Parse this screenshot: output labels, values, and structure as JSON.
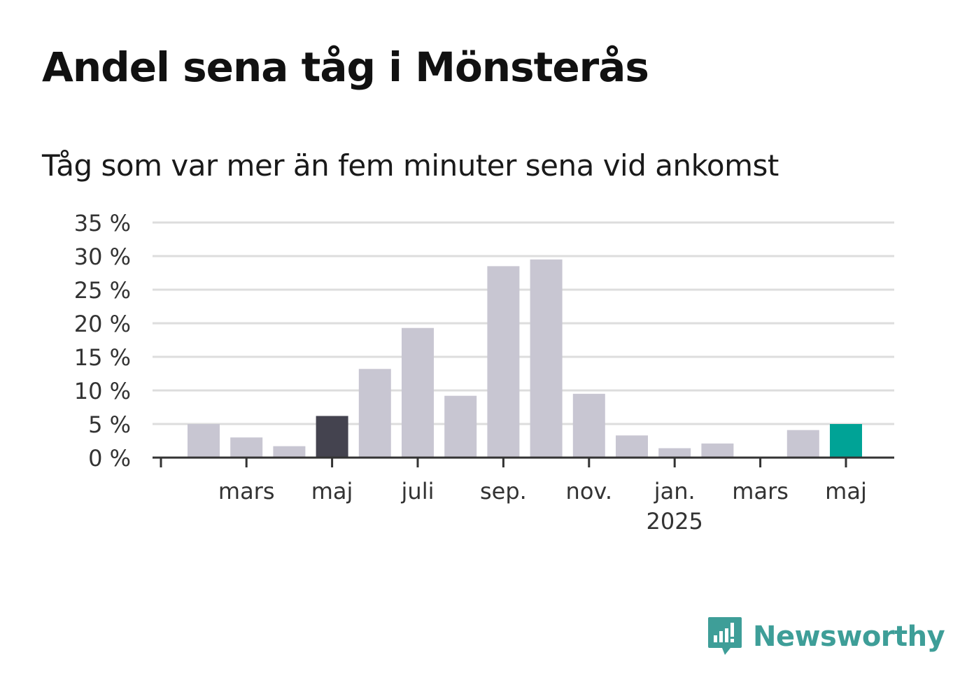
{
  "title": "Andel sena tåg i Mönsterås",
  "subtitle": "Tåg som var mer än fem minuter sena vid ankomst",
  "logo": {
    "text": "Newsworthy",
    "icon": "newsworthy-chart-bubble-icon",
    "color": "#3e9e98"
  },
  "colors": {
    "default_bar": "#c8c6d2",
    "highlight_bar": "#44434f",
    "latest_bar": "#00a396",
    "grid": "#dddddd",
    "axis": "#333333"
  },
  "chart_data": {
    "type": "bar",
    "title": "Andel sena tåg i Mönsterås",
    "subtitle": "Tåg som var mer än fem minuter sena vid ankomst",
    "ylim": [
      0,
      35
    ],
    "yticks": [
      0,
      5,
      10,
      15,
      20,
      25,
      30,
      35
    ],
    "ytick_labels": [
      "0 %",
      "5 %",
      "10 %",
      "15 %",
      "20 %",
      "25 %",
      "30 %",
      "35 %"
    ],
    "grid": true,
    "categories": [
      "2024-02",
      "2024-03",
      "2024-04",
      "2024-05",
      "2024-06",
      "2024-07",
      "2024-08",
      "2024-09",
      "2024-10",
      "2024-11",
      "2024-12",
      "2025-01",
      "2025-02",
      "2025-03",
      "2025-04",
      "2025-05"
    ],
    "values": [
      5.0,
      3.0,
      1.7,
      6.2,
      13.2,
      19.3,
      9.2,
      28.5,
      29.5,
      9.5,
      3.3,
      1.4,
      2.1,
      0,
      4.1,
      5.0
    ],
    "highlight": {
      "2024-05": "highlight_bar",
      "2025-05": "latest_bar"
    },
    "x_tick_labels": [
      {
        "category": "2024-03",
        "label": "mars"
      },
      {
        "category": "2024-05",
        "label": "maj"
      },
      {
        "category": "2024-07",
        "label": "juli"
      },
      {
        "category": "2024-09",
        "label": "sep."
      },
      {
        "category": "2024-11",
        "label": "nov."
      },
      {
        "category": "2025-01",
        "label": "jan.",
        "label2": "2025"
      },
      {
        "category": "2025-03",
        "label": "mars"
      },
      {
        "category": "2025-05",
        "label": "maj"
      }
    ]
  }
}
